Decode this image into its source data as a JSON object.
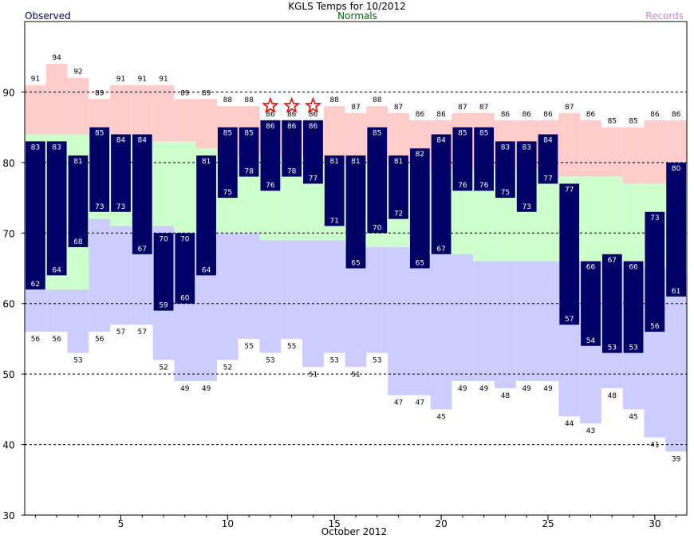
{
  "chart_data": {
    "type": "bar",
    "title": "KGLS Temps for 10/2012",
    "legend": {
      "observed": "Observed",
      "normals": "Normals",
      "records": "Records"
    },
    "xlabel": "October 2012",
    "ylabel": "",
    "xlim": [
      0.5,
      31.5
    ],
    "ylim": [
      30,
      100
    ],
    "x_ticks": [
      5,
      10,
      15,
      20,
      25,
      30
    ],
    "y_ticks": [
      30,
      40,
      50,
      60,
      70,
      80,
      90
    ],
    "gridlines_y": [
      40,
      50,
      60,
      70,
      80,
      90
    ],
    "days": [
      1,
      2,
      3,
      4,
      5,
      6,
      7,
      8,
      9,
      10,
      11,
      12,
      13,
      14,
      15,
      16,
      17,
      18,
      19,
      20,
      21,
      22,
      23,
      24,
      25,
      26,
      27,
      28,
      29,
      30,
      31
    ],
    "series": [
      {
        "name": "Observed High",
        "values": [
          83,
          83,
          81,
          85,
          84,
          84,
          70,
          70,
          81,
          85,
          85,
          86,
          86,
          86,
          81,
          81,
          85,
          81,
          82,
          84,
          85,
          85,
          83,
          83,
          84,
          77,
          66,
          67,
          66,
          73,
          80
        ]
      },
      {
        "name": "Observed Low",
        "values": [
          62,
          64,
          68,
          73,
          73,
          67,
          59,
          60,
          64,
          75,
          78,
          76,
          78,
          77,
          71,
          65,
          70,
          72,
          65,
          67,
          76,
          76,
          75,
          73,
          77,
          57,
          54,
          53,
          53,
          56,
          61
        ]
      },
      {
        "name": "Record High",
        "values": [
          91,
          94,
          92,
          89,
          91,
          91,
          91,
          89,
          89,
          88,
          88,
          86,
          86,
          86,
          88,
          87,
          88,
          87,
          86,
          86,
          87,
          87,
          86,
          86,
          86,
          87,
          86,
          85,
          85,
          86,
          86
        ]
      },
      {
        "name": "Record Low",
        "values": [
          56,
          56,
          53,
          56,
          57,
          57,
          52,
          49,
          49,
          52,
          55,
          53,
          55,
          51,
          53,
          51,
          53,
          47,
          47,
          45,
          49,
          49,
          48,
          49,
          49,
          44,
          43,
          48,
          45,
          41,
          39
        ]
      },
      {
        "name": "Normal High",
        "values": [
          84,
          84,
          84,
          84,
          84,
          84,
          83,
          83,
          82,
          81,
          81,
          81,
          81,
          81,
          80,
          80,
          80,
          80,
          80,
          79,
          79,
          79,
          79,
          79,
          79,
          78,
          78,
          78,
          77,
          77,
          77
        ]
      },
      {
        "name": "Normal Low",
        "values": [
          62,
          62,
          62,
          72,
          71,
          70,
          71,
          70,
          70,
          70,
          70,
          69,
          69,
          69,
          69,
          68,
          68,
          68,
          67,
          67,
          67,
          66,
          66,
          66,
          66,
          66,
          66,
          66,
          65,
          65,
          65
        ]
      }
    ],
    "record_set_days": [
      12,
      13,
      14
    ],
    "colors": {
      "observed": "#000066",
      "observed_label": "#ffffff",
      "record_band": "#ffcccc",
      "normal_band": "#ccffcc",
      "low_band": "#ccccff",
      "legend_observed": "#000066",
      "legend_normals": "#006600",
      "legend_records": "#cc88cc",
      "star": "#ff0000"
    },
    "grid": true,
    "legend_placement": "top"
  }
}
